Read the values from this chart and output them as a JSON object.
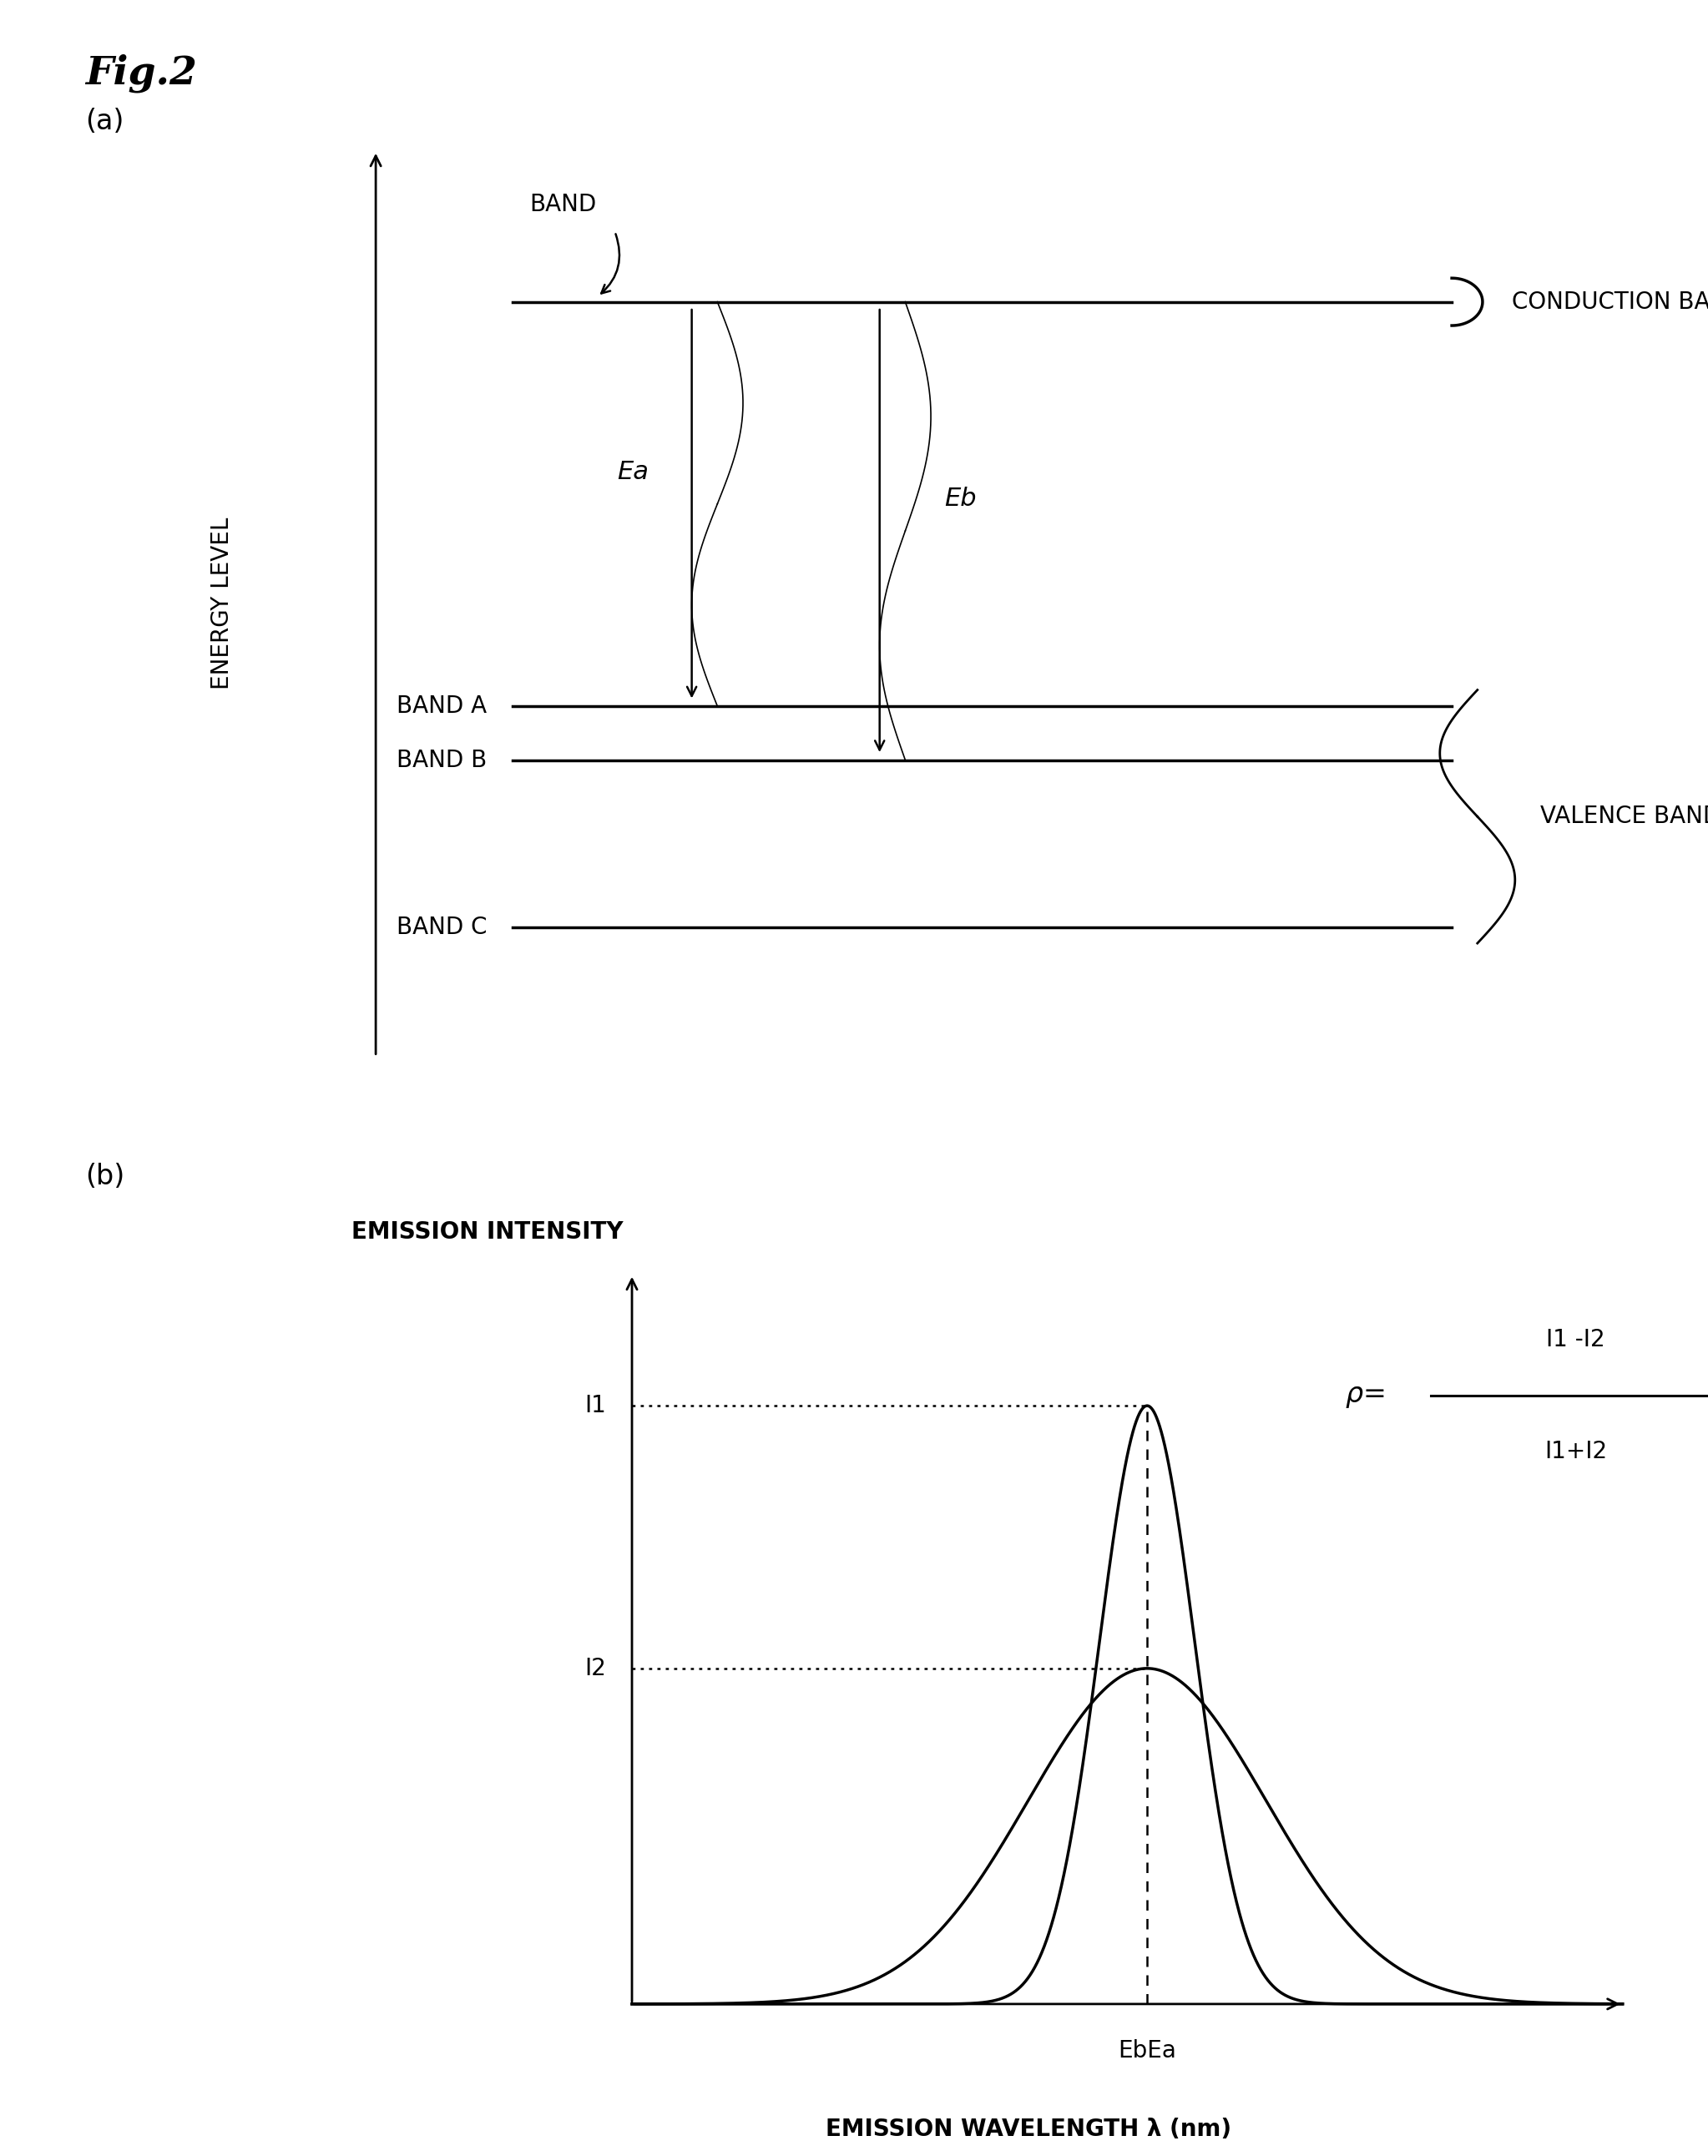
{
  "fig_title": "Fig.2",
  "panel_a_label": "(a)",
  "panel_b_label": "(b)",
  "bg_color": "#ffffff",
  "text_color": "#000000",
  "line_color": "#000000",
  "conduction_band_label": "CONDUCTION BAND",
  "band_label": "BAND",
  "band_a_label": "BAND A",
  "band_b_label": "BAND B",
  "band_c_label": "BAND C",
  "valence_bands_label": "VALENCE BANDS",
  "energy_level_label": "ENERGY LEVEL",
  "ea_label": "Ea",
  "eb_label": "Eb",
  "emission_intensity_label": "EMISSION INTENSITY",
  "emission_wavelength_label": "EMISSION WAVELENGTH λ (nm)",
  "i1_label": "I1",
  "i2_label": "I2",
  "ebea_label": "EbEa",
  "rho_numerator": "I1 -I2",
  "rho_denominator": "I1+I2",
  "fontsize_main": 20,
  "fontsize_label": 18,
  "fontsize_title": 34,
  "fontsize_panel": 24
}
